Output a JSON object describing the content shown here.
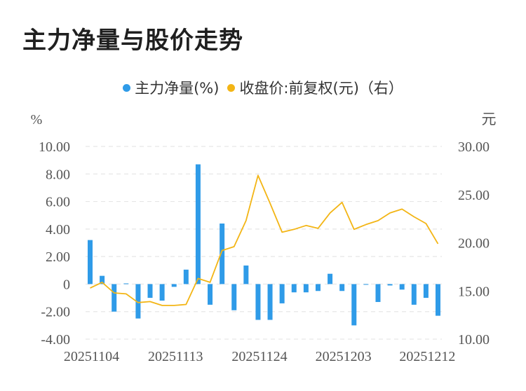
{
  "page": {
    "title": "主力净量与股价走势"
  },
  "colors": {
    "bar": "#2f9be8",
    "line": "#f3b515",
    "grid": "#e6e6e6",
    "tick": "#555555"
  },
  "chart_data": {
    "type": "bar",
    "title": "主力净量与股价走势",
    "left_axis": {
      "unit": "%",
      "ylim": [
        -4,
        10
      ],
      "ticks": [
        "10.00",
        "8.00",
        "6.00",
        "4.00",
        "2.00",
        "0",
        "-2.00",
        "-4.00"
      ]
    },
    "right_axis": {
      "unit": "元",
      "ylim": [
        10,
        30
      ],
      "ticks": [
        "30.00",
        "25.00",
        "20.00",
        "15.00",
        "10.00"
      ]
    },
    "x_tick_labels": [
      "20251104",
      "20251113",
      "20251124",
      "20251203",
      "20251212"
    ],
    "grid": true,
    "legend_position": "top-center",
    "series": [
      {
        "name": "主力净量(%)",
        "type": "bar",
        "axis": "left",
        "values": [
          3.2,
          0.6,
          -2.0,
          0.05,
          -2.5,
          -1.0,
          -1.2,
          -0.2,
          1.05,
          8.7,
          -1.5,
          4.4,
          -1.9,
          1.35,
          -2.6,
          -2.6,
          -1.4,
          -0.6,
          -0.6,
          -0.5,
          0.75,
          -0.5,
          -3.0,
          -0.05,
          -1.3,
          -0.1,
          -0.4,
          -1.5,
          -1.0,
          -2.3
        ]
      },
      {
        "name": "收盘价:前复权(元)（右）",
        "type": "line",
        "axis": "right",
        "values": [
          15.3,
          15.9,
          14.8,
          14.7,
          13.8,
          13.9,
          13.5,
          13.5,
          13.6,
          16.3,
          15.9,
          19.2,
          19.6,
          22.3,
          27.0,
          24.1,
          21.1,
          21.4,
          21.8,
          21.5,
          23.1,
          24.2,
          21.4,
          21.9,
          22.3,
          23.1,
          23.5,
          22.7,
          22.0,
          19.9
        ]
      }
    ]
  }
}
